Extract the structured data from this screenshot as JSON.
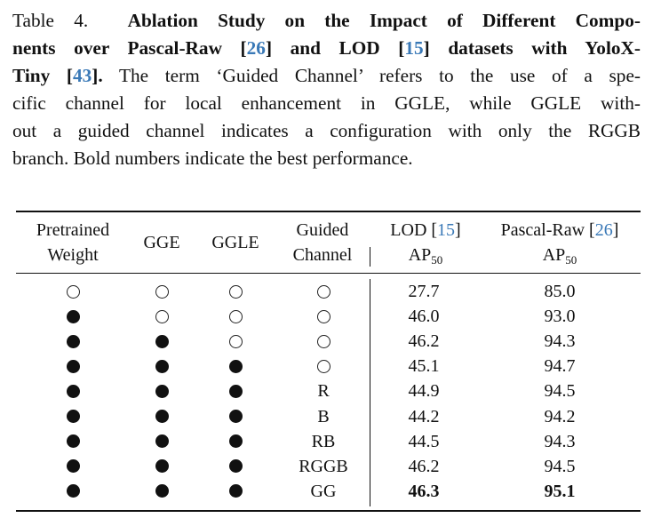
{
  "caption": {
    "label": "Table 4.",
    "title_line1": "Ablation Study on the Impact of Different Compo-",
    "title_line2_pre": "nents over Pascal-Raw [",
    "ref_pascal": "26",
    "title_line2_mid": "] and LOD [",
    "ref_lod": "15",
    "title_line2_post": "] datasets with YoloX-",
    "title_line3_pre": "Tiny [",
    "ref_yolox": "43",
    "title_line3_post": "].",
    "body_line3": " The term ‘Guided Channel’ refers to the use of a spe-",
    "body_line4": "cific channel for local enhancement in GGLE, while GGLE with-",
    "body_line5": "out a guided channel indicates a configuration with only the RGGB",
    "body_line6": "branch. Bold numbers indicate the best performance."
  },
  "table": {
    "headers": {
      "pretrained_1": "Pretrained",
      "pretrained_2": "Weight",
      "gge": "GGE",
      "ggle": "GGLE",
      "guided_1": "Guided",
      "guided_2": "Channel",
      "lod_pre": "LOD [",
      "lod_ref": "15",
      "lod_post": "]",
      "pascal_pre": "Pascal-Raw [",
      "pascal_ref": "26",
      "pascal_post": "]",
      "metric": "AP",
      "metric_sub": "50"
    },
    "rows": [
      {
        "pretrained": false,
        "gge": false,
        "ggle": false,
        "channel": null,
        "lod": "27.7",
        "pascal": "85.0",
        "best": false
      },
      {
        "pretrained": true,
        "gge": false,
        "ggle": false,
        "channel": null,
        "lod": "46.0",
        "pascal": "93.0",
        "best": false
      },
      {
        "pretrained": true,
        "gge": true,
        "ggle": false,
        "channel": null,
        "lod": "46.2",
        "pascal": "94.3",
        "best": false
      },
      {
        "pretrained": true,
        "gge": true,
        "ggle": true,
        "channel": null,
        "lod": "45.1",
        "pascal": "94.7",
        "best": false
      },
      {
        "pretrained": true,
        "gge": true,
        "ggle": true,
        "channel": "R",
        "lod": "44.9",
        "pascal": "94.5",
        "best": false
      },
      {
        "pretrained": true,
        "gge": true,
        "ggle": true,
        "channel": "B",
        "lod": "44.2",
        "pascal": "94.2",
        "best": false
      },
      {
        "pretrained": true,
        "gge": true,
        "ggle": true,
        "channel": "RB",
        "lod": "44.5",
        "pascal": "94.3",
        "best": false
      },
      {
        "pretrained": true,
        "gge": true,
        "ggle": true,
        "channel": "RGGB",
        "lod": "46.2",
        "pascal": "94.5",
        "best": false
      },
      {
        "pretrained": true,
        "gge": true,
        "ggle": true,
        "channel": "GG",
        "lod": "46.3",
        "pascal": "95.1",
        "best": true
      }
    ]
  }
}
